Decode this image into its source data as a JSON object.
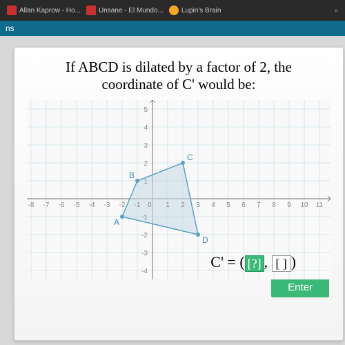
{
  "browser": {
    "favorites": [
      {
        "color": "#c93030",
        "label": "Allan Kaprow - Ho..."
      },
      {
        "color": "#c93030",
        "label": "Unsane - El Mundo..."
      },
      {
        "color": "#f5a623",
        "label": "Lupin's Brain"
      }
    ]
  },
  "toolbar": {
    "label": "ns"
  },
  "question": {
    "line1": "If ABCD is dilated by a factor of 2, the",
    "line2": "coordinate of C' would be:"
  },
  "graph": {
    "type": "scatter-polygon",
    "xlim": [
      -8,
      11
    ],
    "ylim": [
      -4,
      5
    ],
    "xtick_step": 1,
    "ytick_step": 1,
    "grid_color": "#d9e8ee",
    "axis_color": "#888",
    "poly_stroke": "#5aa0c4",
    "poly_fill": "#c5dae5",
    "poly_fill_opacity": 0.55,
    "pt_label_color": "#3a8db8",
    "points": {
      "A": {
        "x": -2,
        "y": -1
      },
      "B": {
        "x": -1,
        "y": 1
      },
      "C": {
        "x": 2,
        "y": 2
      },
      "D": {
        "x": 3,
        "y": -2
      }
    },
    "axis_fontsize": 10,
    "label_fontsize": 12,
    "background_color": "#f9f9f9"
  },
  "answer": {
    "prefix": "C' = (",
    "sel_placeholder": "[?]",
    "mid": ", ",
    "blank_placeholder": "[  ]",
    "suffix": ")"
  },
  "enter_label": "Enter"
}
